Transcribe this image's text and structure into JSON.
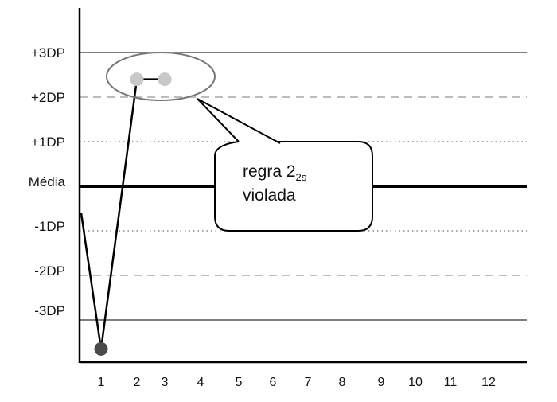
{
  "chart_data": {
    "type": "line",
    "title": "",
    "xlabel": "",
    "ylabel": "",
    "y_tick_labels": [
      "+3DP",
      "+2DP",
      "+1DP",
      "Média",
      "-1DP",
      "-2DP",
      "-3DP"
    ],
    "y_tick_values": [
      3,
      2,
      1,
      0,
      -1,
      -2,
      -3
    ],
    "x_tick_labels": [
      "1",
      "2",
      "3",
      "4",
      "5",
      "6",
      "7",
      "8",
      "9",
      "10",
      "11",
      "12"
    ],
    "ylim": [
      -4,
      4
    ],
    "series": [
      {
        "x": [
          1,
          2,
          3
        ],
        "y": [
          -3.65,
          2.4,
          2.4
        ],
        "incoming_from_left_y": -0.6,
        "point_colors": [
          "#4a4a4a",
          "#c8c8c8",
          "#c8c8c8"
        ]
      }
    ],
    "line_styles": {
      "mean": "solid-thick",
      "1sd": "dotted",
      "2sd": "dashed",
      "3sd": "solid"
    },
    "annotation": {
      "text_main": "regra 2",
      "text_subscript": "2s",
      "text_line2": "violada",
      "highlights_points": [
        2,
        3
      ]
    },
    "colors": {
      "line": "#000000",
      "dashed": "#bdbdbd",
      "dotted": "#888888",
      "grid3": "#555555"
    }
  }
}
